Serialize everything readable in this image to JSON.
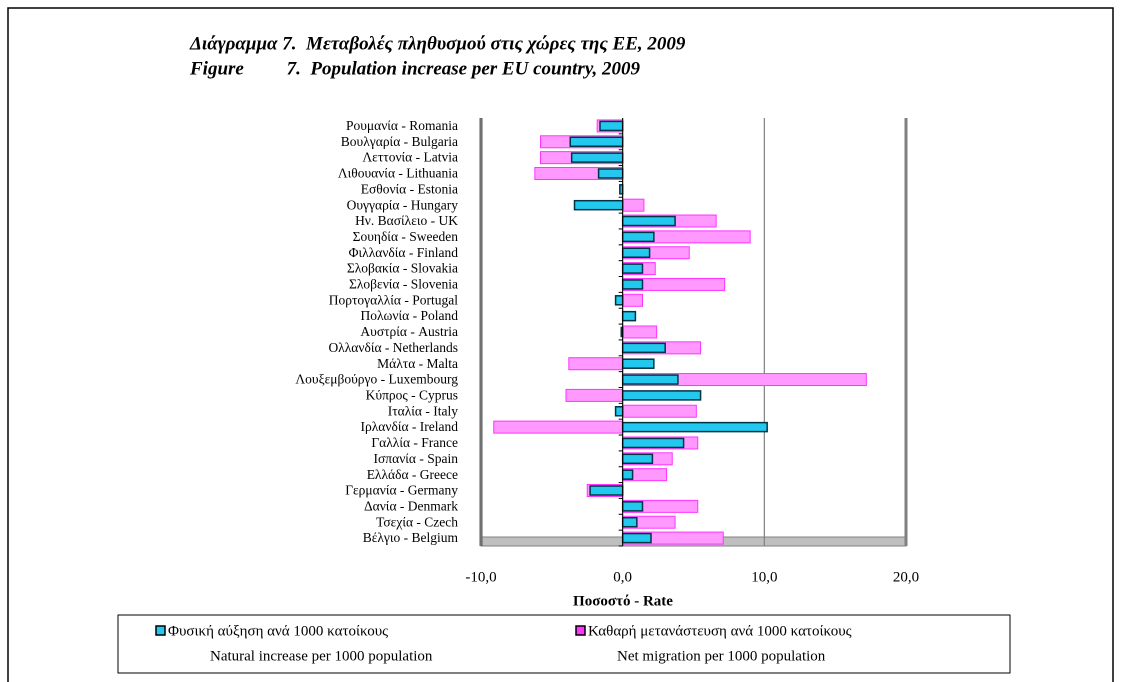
{
  "chart_data": {
    "type": "hbar",
    "title": "Διάγραμμα 7.  Μεταβολές πληθυσμού στις χώρες της ΕΕ, 2009",
    "subtitle": "Figure         7.  Population increase per EU country, 2009",
    "x_label": "Ποσοστό - Rate",
    "categories": [
      "Ρουμανία - Romania",
      "Βουλγαρία - Bulgaria",
      "Λεττονία - Latvia",
      "Λιθουανία - Lithuania",
      "Εσθονία - Estonia",
      "Ουγγαρία - Hungary",
      "Ην. Βασίλειο - UK",
      "Σουηδία - Sweeden",
      "Φιλλανδία - Finland",
      "Σλοβακία - Slovakia",
      "Σλοβενία - Slovenia",
      "Πορτογαλλία - Portugal",
      "Πολωνία - Poland",
      "Αυστρία - Austria",
      "Ολλανδία - Netherlands",
      "Μάλτα - Malta",
      "Λουξεμβούργο - Luxembourg",
      "Κύπρος - Cyprus",
      "Ιταλία - Italy",
      "Ιρλανδία - Ireland",
      "Γαλλία - France",
      "Ισπανία - Spain",
      "Ελλάδα - Greece",
      "Γερμανία - Germany",
      "Δανία - Denmark",
      "Τσεχία - Czech",
      "Βέλγιο - Belgium"
    ],
    "series": [
      {
        "name": "Καθαρή μετανάστευση ανά 1000 κατοίκους",
        "name_en": "Net migration per 1000 population",
        "color": "#ff33ff",
        "values": [
          -1.8,
          -5.8,
          -5.8,
          -6.2,
          0,
          1.5,
          6.6,
          9.0,
          4.7,
          2.3,
          7.2,
          1.4,
          0,
          2.4,
          5.5,
          -3.8,
          17.2,
          -4.0,
          5.2,
          -9.1,
          5.3,
          3.5,
          3.1,
          -2.5,
          5.3,
          3.7,
          7.1
        ]
      },
      {
        "name": "Φυσική αύξηση ανά 1000 κατοίκους",
        "name_en": "Natural increase per 1000 population",
        "color": "#22c8ee",
        "values": [
          -1.6,
          -3.7,
          -3.6,
          -1.7,
          -0.2,
          -3.4,
          3.7,
          2.2,
          1.9,
          1.4,
          1.4,
          -0.5,
          0.9,
          -0.1,
          3.0,
          2.2,
          3.9,
          5.5,
          -0.5,
          10.2,
          4.3,
          2.1,
          0.7,
          -2.3,
          1.4,
          1.0,
          2.0
        ]
      }
    ],
    "xlim": [
      -10,
      20
    ],
    "xticks": [
      {
        "value": -10,
        "label": "-10,0"
      },
      {
        "value": 0,
        "label": "0,0"
      },
      {
        "value": 10,
        "label": "10,0"
      },
      {
        "value": 20,
        "label": "20,0"
      }
    ],
    "grid": true
  }
}
